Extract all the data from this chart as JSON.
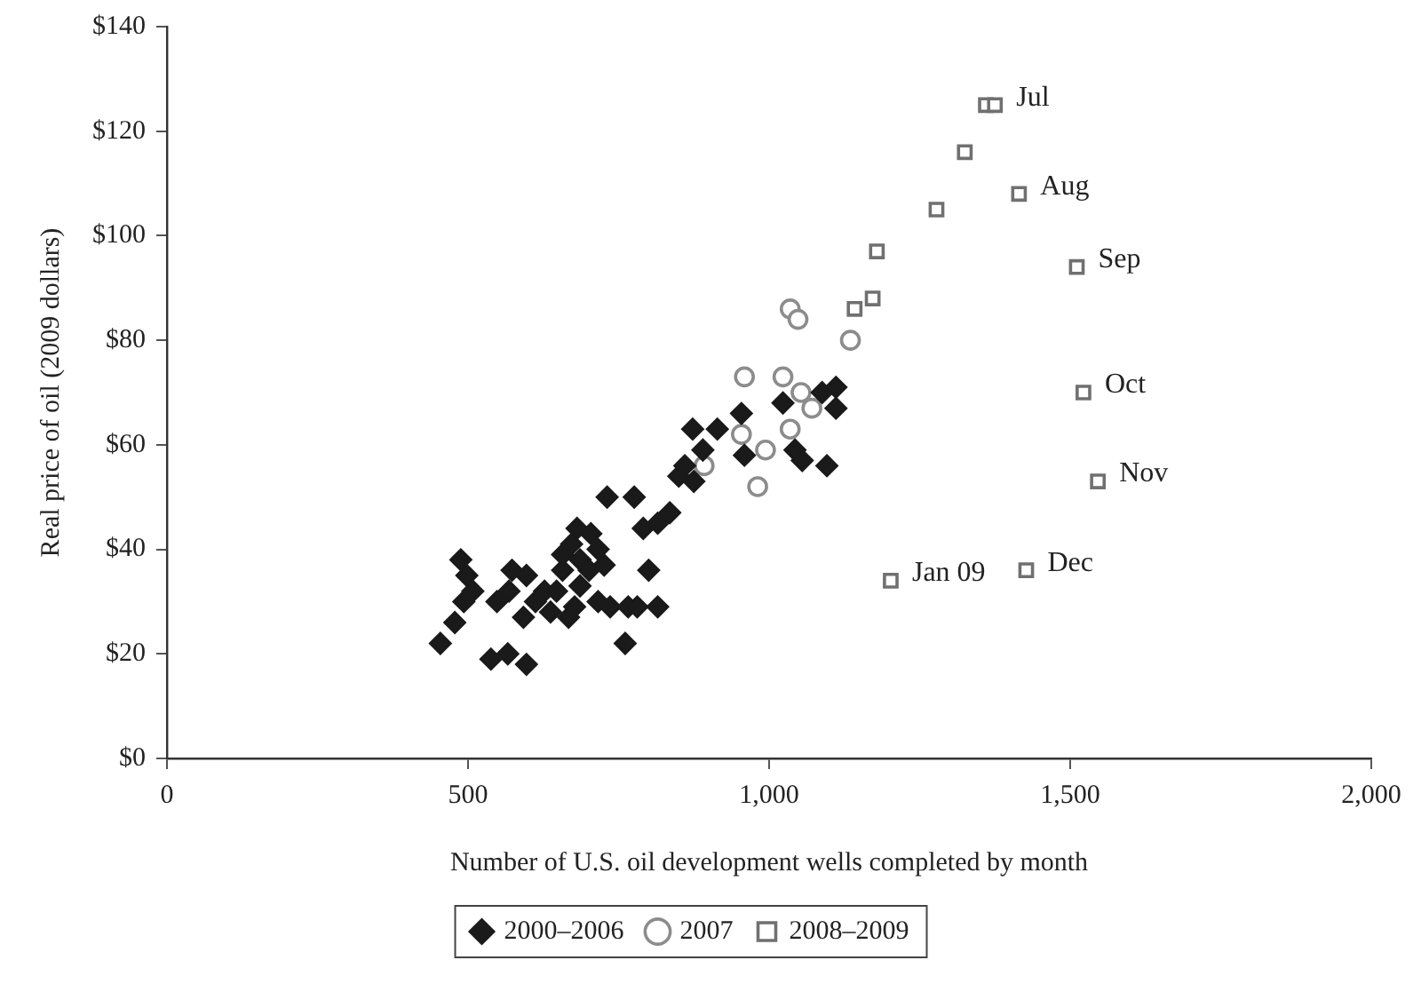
{
  "chart_data": {
    "type": "scatter",
    "xlabel": "Number of U.S. oil development wells completed by month",
    "ylabel": "Real price of oil (2009 dollars)",
    "xlim": [
      0,
      2000
    ],
    "xticks": [
      {
        "value": 0,
        "label": "0"
      },
      {
        "value": 500,
        "label": "500"
      },
      {
        "value": 1000,
        "label": "1,000"
      },
      {
        "value": 1500,
        "label": "1,500"
      },
      {
        "value": 2000,
        "label": "2,000"
      }
    ],
    "ylim": [
      0,
      140
    ],
    "yticks": [
      {
        "value": 0,
        "label": "$0"
      },
      {
        "value": 20,
        "label": "$20"
      },
      {
        "value": 40,
        "label": "$40"
      },
      {
        "value": 60,
        "label": "$60"
      },
      {
        "value": 80,
        "label": "$80"
      },
      {
        "value": 100,
        "label": "$100"
      },
      {
        "value": 120,
        "label": "$120"
      },
      {
        "value": 140,
        "label": "$140"
      }
    ],
    "grid": false,
    "legend": "bottom",
    "series": [
      {
        "name": "2000–2006",
        "color": "#1a1a1a",
        "marker": "diamond",
        "x": [
          1111,
          1088,
          1023,
          1111,
          954,
          914,
          873,
          959,
          890,
          1043,
          1055,
          1096,
          860,
          850,
          875,
          731,
          776,
          835,
          815,
          791,
          681,
          704,
          672,
          716,
          686,
          726,
          800,
          657,
          488,
          498,
          573,
          597,
          508,
          568,
          627,
          686,
          493,
          548,
          612,
          647,
          677,
          716,
          736,
          766,
          781,
          815,
          592,
          637,
          667,
          478,
          454,
          538,
          566,
          597,
          761,
          657,
          701,
          647
        ],
        "values": [
          71,
          70,
          68,
          67,
          66,
          63,
          63,
          58,
          59,
          59,
          57,
          56,
          56,
          54,
          53,
          50,
          50,
          47,
          45,
          44,
          44,
          43,
          41,
          40,
          38,
          37,
          36,
          36,
          38,
          35,
          36,
          35,
          32,
          32,
          32,
          33,
          30,
          30,
          30,
          null,
          29,
          30,
          29,
          29,
          29,
          29,
          27,
          28,
          27,
          26,
          22,
          19,
          20,
          18,
          22,
          39,
          36,
          32
        ]
      },
      {
        "name": "2007",
        "color": "#8c8c8c",
        "marker": "circle",
        "x": [
          1035,
          1048,
          1135,
          1023,
          959,
          1053,
          1071,
          1035,
          954,
          994,
          892,
          981
        ],
        "values": [
          86,
          84,
          80,
          73,
          73,
          70,
          67,
          63,
          62,
          59,
          56,
          52
        ]
      },
      {
        "name": "2008–2009",
        "color": "#707070",
        "marker": "square",
        "x": [
          1360,
          1375,
          1325,
          1415,
          1278,
          1179,
          1172,
          1142,
          1511,
          1522,
          1546,
          1427,
          1202
        ],
        "values": [
          125,
          125,
          116,
          108,
          105,
          97,
          88,
          86,
          94,
          70,
          53,
          36,
          34
        ]
      }
    ],
    "annotations": [
      {
        "text": "Jul",
        "x": 1375,
        "y": 125
      },
      {
        "text": "Aug",
        "x": 1415,
        "y": 108
      },
      {
        "text": "Sep",
        "x": 1511,
        "y": 94
      },
      {
        "text": "Oct",
        "x": 1522,
        "y": 70
      },
      {
        "text": "Nov",
        "x": 1546,
        "y": 53
      },
      {
        "text": "Dec",
        "x": 1427,
        "y": 36
      },
      {
        "text": "Jan 09",
        "x": 1202,
        "y": 34
      }
    ]
  }
}
